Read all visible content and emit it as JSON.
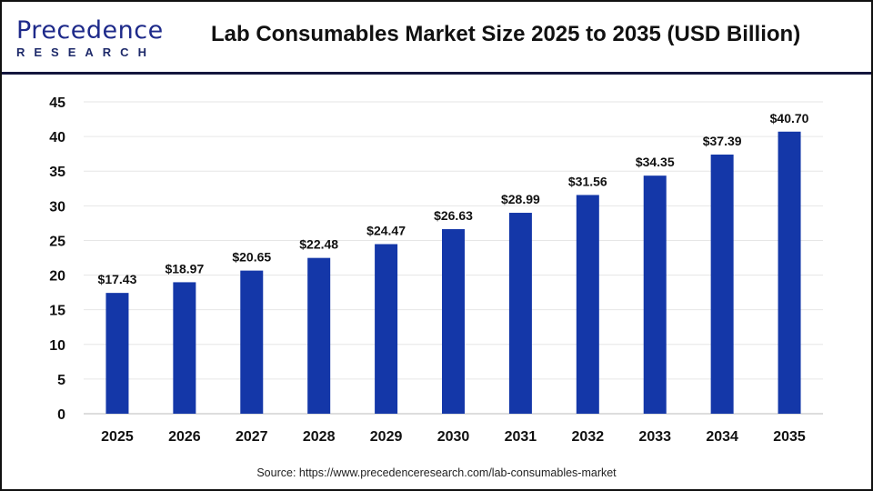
{
  "header": {
    "logo_line1": "Precedence",
    "logo_line2": "RESEARCH",
    "title": "Lab Consumables Market Size 2025 to 2035 (USD Billion)"
  },
  "source": "Source: https://www.precedenceresearch.com/lab-consumables-market",
  "colors": {
    "bar": "#1437a8",
    "grid": "#e6e6e6",
    "divider": "#14163d"
  },
  "chart_data": {
    "type": "bar",
    "title": "Lab Consumables Market Size 2025 to 2035 (USD Billion)",
    "xlabel": "",
    "ylabel": "",
    "categories": [
      "2025",
      "2026",
      "2027",
      "2028",
      "2029",
      "2030",
      "2031",
      "2032",
      "2033",
      "2034",
      "2035"
    ],
    "values": [
      17.43,
      18.97,
      20.65,
      22.48,
      24.47,
      26.63,
      28.99,
      31.56,
      34.35,
      37.39,
      40.7
    ],
    "data_labels": [
      "$17.43",
      "$18.97",
      "$20.65",
      "$22.48",
      "$24.47",
      "$26.63",
      "$28.99",
      "$31.56",
      "$34.35",
      "$37.39",
      "$40.70"
    ],
    "ylim": [
      0,
      45
    ],
    "yticks": [
      0,
      5,
      10,
      15,
      20,
      25,
      30,
      35,
      40,
      45
    ],
    "grid": true,
    "legend": "none"
  }
}
